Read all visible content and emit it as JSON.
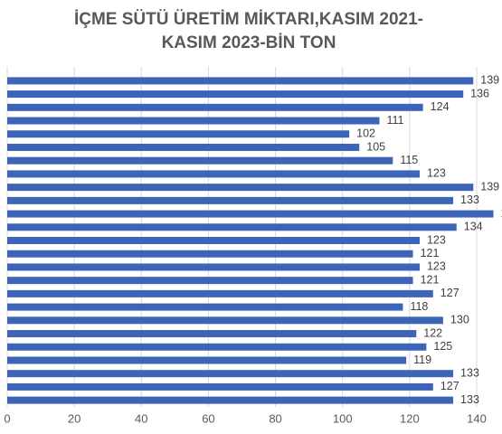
{
  "chart_data": {
    "type": "bar",
    "orientation": "horizontal",
    "title_lines": [
      "İÇME SÜTÜ ÜRETİM MİKTARI,KASIM 2021-",
      "KASIM 2023-BİN TON"
    ],
    "values": [
      139,
      136,
      124,
      111,
      102,
      105,
      115,
      123,
      139,
      133,
      145,
      134,
      123,
      121,
      123,
      121,
      127,
      118,
      130,
      122,
      125,
      119,
      133,
      127,
      133
    ],
    "color": "#3e64b8",
    "xlim": [
      0,
      140
    ],
    "xticks": [
      0,
      20,
      40,
      60,
      80,
      100,
      120,
      140
    ],
    "grid": true
  }
}
